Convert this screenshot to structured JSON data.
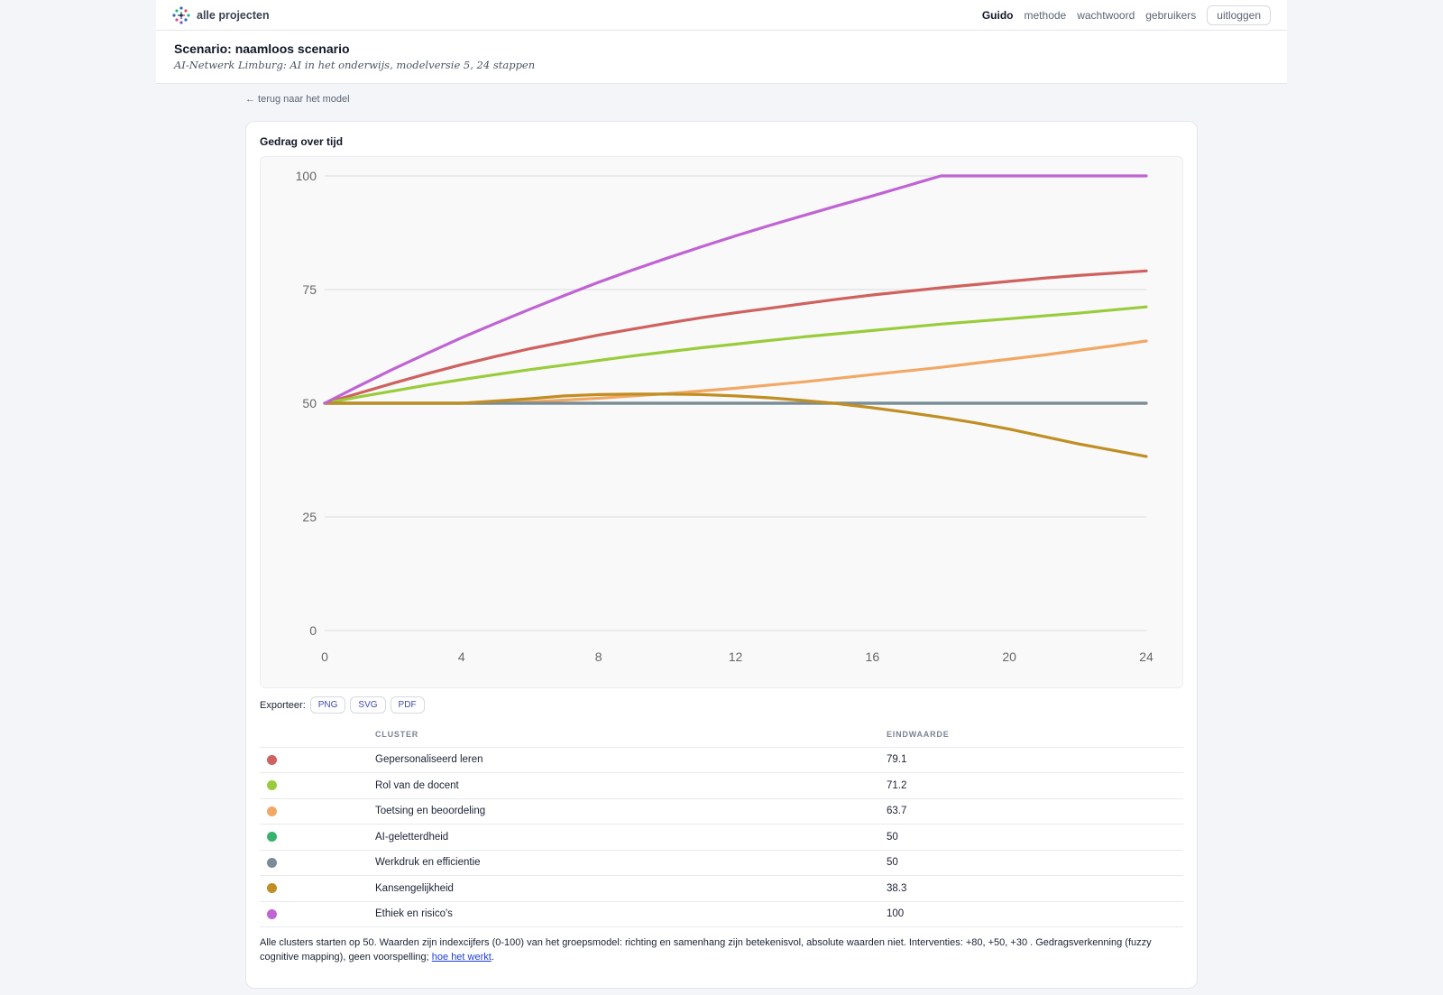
{
  "topbar": {
    "brand": "alle projecten",
    "nav": [
      "Guido",
      "methode",
      "wachtwoord",
      "gebruikers"
    ],
    "logout": "uitloggen"
  },
  "header": {
    "title": "Scenario: naamloos scenario",
    "subtitle": "AI-Netwerk Limburg: AI in het onderwijs, modelversie 5, 24 stappen"
  },
  "back_link": "← terug naar het model",
  "card_title": "Gedrag over tijd",
  "chart_data": {
    "type": "line",
    "x": [
      0,
      1,
      2,
      3,
      4,
      5,
      6,
      7,
      8,
      9,
      10,
      11,
      12,
      13,
      14,
      15,
      16,
      17,
      18,
      19,
      20,
      21,
      22,
      23,
      24
    ],
    "xlim": [
      0,
      24
    ],
    "ylim": [
      0,
      100
    ],
    "x_ticks": [
      0,
      4,
      8,
      12,
      16,
      20,
      24
    ],
    "y_ticks": [
      0,
      25,
      50,
      75,
      100
    ],
    "grid": "horizontal",
    "series": [
      {
        "name": "Gepersonaliseerd leren",
        "color": "#cf615e",
        "values": [
          50,
          52.2,
          54.4,
          56.5,
          58.5,
          60.3,
          62,
          63.5,
          65,
          66.3,
          67.6,
          68.8,
          69.9,
          70.9,
          71.9,
          72.9,
          73.8,
          74.6,
          75.4,
          76.1,
          76.8,
          77.5,
          78.1,
          78.6,
          79.1
        ]
      },
      {
        "name": "Rol van de docent",
        "color": "#99cc3a",
        "values": [
          50,
          51.4,
          52.7,
          54,
          55.2,
          56.3,
          57.4,
          58.4,
          59.4,
          60.4,
          61.3,
          62.2,
          63,
          63.8,
          64.6,
          65.3,
          66,
          66.7,
          67.4,
          68,
          68.6,
          69.2,
          69.8,
          70.5,
          71.2
        ]
      },
      {
        "name": "Toetsing en beoordeling",
        "color": "#f2a865",
        "values": [
          50,
          50,
          50,
          50,
          50,
          50,
          50.3,
          50.7,
          51.1,
          51.6,
          52.1,
          52.7,
          53.3,
          54,
          54.7,
          55.5,
          56.3,
          57.1,
          57.9,
          58.8,
          59.7,
          60.6,
          61.6,
          62.6,
          63.7
        ]
      },
      {
        "name": "AI-geletterdheid",
        "color": "#37b36e",
        "values": [
          50,
          50,
          50,
          50,
          50,
          50,
          50,
          50,
          50,
          50,
          50,
          50,
          50,
          50,
          50,
          50,
          50,
          50,
          50,
          50,
          50,
          50,
          50,
          50,
          50
        ]
      },
      {
        "name": "Werkdruk en efficientie",
        "color": "#7d8b99",
        "values": [
          50,
          50,
          50,
          50,
          50,
          50,
          50,
          50,
          50,
          50,
          50,
          50,
          50,
          50,
          50,
          50,
          50,
          50,
          50,
          50,
          50,
          50,
          50,
          50,
          50
        ]
      },
      {
        "name": "Kansengelijkheid",
        "color": "#c08e22",
        "values": [
          50,
          50,
          50,
          50,
          50,
          50.5,
          51,
          51.6,
          51.9,
          52,
          52,
          51.9,
          51.6,
          51.2,
          50.6,
          49.9,
          49,
          48,
          46.9,
          45.7,
          44.3,
          42.7,
          41.1,
          39.7,
          38.3
        ]
      },
      {
        "name": "Ethiek en risico's",
        "color": "#c063d4",
        "values": [
          50,
          53.8,
          57.5,
          61,
          64.4,
          67.6,
          70.7,
          73.7,
          76.6,
          79.3,
          81.9,
          84.4,
          86.8,
          89.1,
          91.3,
          93.5,
          95.6,
          97.8,
          100,
          100,
          100,
          100,
          100,
          100,
          100
        ]
      }
    ]
  },
  "export": {
    "label": "Exporteer:",
    "buttons": [
      "PNG",
      "SVG",
      "PDF"
    ]
  },
  "table": {
    "headers": [
      "CLUSTER",
      "EINDWAARDE"
    ],
    "rows": [
      {
        "color": "#cf615e",
        "name": "Gepersonaliseerd leren",
        "value": "79.1"
      },
      {
        "color": "#99cc3a",
        "name": "Rol van de docent",
        "value": "71.2"
      },
      {
        "color": "#f2a865",
        "name": "Toetsing en beoordeling",
        "value": "63.7"
      },
      {
        "color": "#37b36e",
        "name": "AI-geletterdheid",
        "value": "50"
      },
      {
        "color": "#7d8b99",
        "name": "Werkdruk en efficientie",
        "value": "50"
      },
      {
        "color": "#c08e22",
        "name": "Kansengelijkheid",
        "value": "38.3"
      },
      {
        "color": "#c063d4",
        "name": "Ethiek en risico's",
        "value": "100"
      }
    ]
  },
  "note": {
    "text": "Alle clusters starten op 50. Waarden zijn indexcijfers (0-100) van het groepsmodel: richting en samenhang zijn betekenisvol, absolute waarden niet. Interventies: +80, +50, +30 . Gedragsverkenning (fuzzy cognitive mapping), geen voorspelling; ",
    "link": "hoe het werkt",
    "end": "."
  }
}
